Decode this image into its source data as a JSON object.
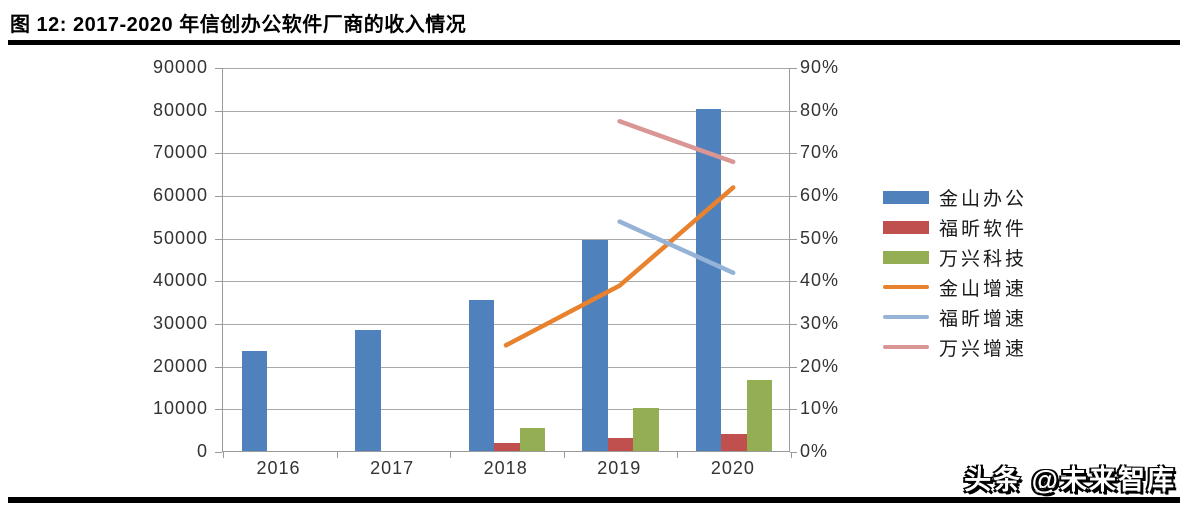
{
  "header": {
    "title": "图 12:  2017-2020 年信创办公软件厂商的收入情况"
  },
  "watermark": "头条 @未来智库",
  "chart_data": {
    "type": "bar+line",
    "categories": [
      "2016",
      "2017",
      "2018",
      "2019",
      "2020"
    ],
    "bar_series": [
      {
        "name": "金山办公",
        "color": "#4F81BD",
        "values": [
          23500,
          28400,
          35400,
          49500,
          80200
        ]
      },
      {
        "name": "福昕软件",
        "color": "#C0504D",
        "values": [
          null,
          null,
          1800,
          3000,
          4100
        ]
      },
      {
        "name": "万兴科技",
        "color": "#94AF53",
        "values": [
          null,
          null,
          5400,
          10000,
          16600
        ]
      }
    ],
    "line_series": [
      {
        "name": "金山增速",
        "color": "#E8822E",
        "values": [
          null,
          null,
          25,
          39,
          62
        ]
      },
      {
        "name": "福昕增速",
        "color": "#95B3D7",
        "values": [
          null,
          null,
          null,
          54,
          42
        ]
      },
      {
        "name": "万兴增速",
        "color": "#D99694",
        "values": [
          null,
          null,
          null,
          77.5,
          68
        ]
      }
    ],
    "left_axis": {
      "min": 0,
      "max": 90000,
      "step": 10000,
      "tick_labels": [
        "0",
        "10000",
        "20000",
        "30000",
        "40000",
        "50000",
        "60000",
        "70000",
        "80000",
        "90000"
      ]
    },
    "right_axis": {
      "min": 0,
      "max": 90,
      "step": 10,
      "tick_labels": [
        "0%",
        "10%",
        "20%",
        "30%",
        "40%",
        "50%",
        "60%",
        "70%",
        "80%",
        "90%"
      ]
    },
    "grid": true,
    "legend_position": "right"
  }
}
